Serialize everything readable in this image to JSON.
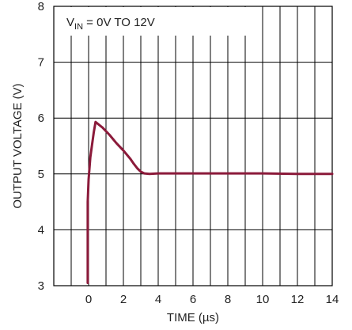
{
  "chart_data": {
    "type": "line",
    "xlabel": "TIME (µs)",
    "ylabel": "OUTPUT VOLTAGE (V)",
    "xlim": [
      -2,
      14
    ],
    "ylim": [
      3,
      8
    ],
    "x_ticks": [
      0,
      2,
      4,
      6,
      8,
      10,
      12,
      14
    ],
    "y_ticks": [
      3,
      4,
      5,
      6,
      7,
      8
    ],
    "grid": true,
    "annotation": {
      "main": "V",
      "sub": "IN",
      "rest": " = 0V TO 12V"
    },
    "series": [
      {
        "color": "#8b1a3a",
        "x": [
          -0.05,
          -0.05,
          0.0,
          0.1,
          0.3,
          0.4,
          0.8,
          1.2,
          1.6,
          2.0,
          2.4,
          2.6,
          2.8,
          3.0,
          3.2,
          3.5,
          4.0,
          6.0,
          8.0,
          10.0,
          12.0,
          14.0
        ],
        "y": [
          3.05,
          4.5,
          4.9,
          5.3,
          5.75,
          5.93,
          5.83,
          5.7,
          5.55,
          5.42,
          5.27,
          5.18,
          5.1,
          5.04,
          5.01,
          5.0,
          5.01,
          5.01,
          5.01,
          5.01,
          5.0,
          5.0
        ]
      }
    ]
  }
}
